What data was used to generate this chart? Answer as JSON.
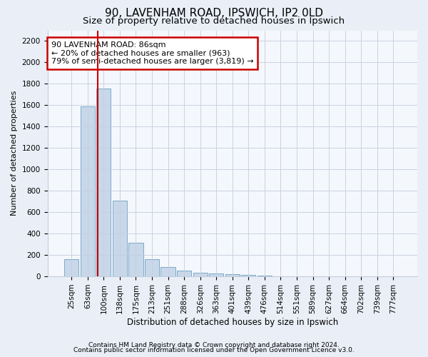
{
  "title1": "90, LAVENHAM ROAD, IPSWICH, IP2 0LD",
  "title2": "Size of property relative to detached houses in Ipswich",
  "xlabel": "Distribution of detached houses by size in Ipswich",
  "ylabel": "Number of detached properties",
  "categories": [
    "25sqm",
    "63sqm",
    "100sqm",
    "138sqm",
    "175sqm",
    "213sqm",
    "251sqm",
    "288sqm",
    "326sqm",
    "363sqm",
    "401sqm",
    "439sqm",
    "476sqm",
    "514sqm",
    "551sqm",
    "589sqm",
    "627sqm",
    "664sqm",
    "702sqm",
    "739sqm",
    "777sqm"
  ],
  "values": [
    160,
    1590,
    1755,
    710,
    315,
    160,
    85,
    55,
    35,
    25,
    20,
    15,
    10,
    0,
    0,
    0,
    0,
    0,
    0,
    0,
    0
  ],
  "bar_color": "#c8d8ea",
  "bar_edge_color": "#7aaac8",
  "vline_x": 1.63,
  "vline_color": "#cc0000",
  "annotation_text": "90 LAVENHAM ROAD: 86sqm\n← 20% of detached houses are smaller (963)\n79% of semi-detached houses are larger (3,819) →",
  "annotation_box_facecolor": "#ffffff",
  "annotation_box_edge": "#cc0000",
  "ylim": [
    0,
    2300
  ],
  "yticks": [
    0,
    200,
    400,
    600,
    800,
    1000,
    1200,
    1400,
    1600,
    1800,
    2000,
    2200
  ],
  "footer1": "Contains HM Land Registry data © Crown copyright and database right 2024.",
  "footer2": "Contains public sector information licensed under the Open Government Licence v3.0.",
  "bg_color": "#eaeff7",
  "plot_bg_color": "#f4f7fc",
  "grid_color": "#c5cedc",
  "title1_fontsize": 11,
  "title2_fontsize": 9.5,
  "xlabel_fontsize": 8.5,
  "ylabel_fontsize": 8,
  "tick_fontsize": 7.5,
  "annotation_fontsize": 8,
  "footer_fontsize": 6.5
}
